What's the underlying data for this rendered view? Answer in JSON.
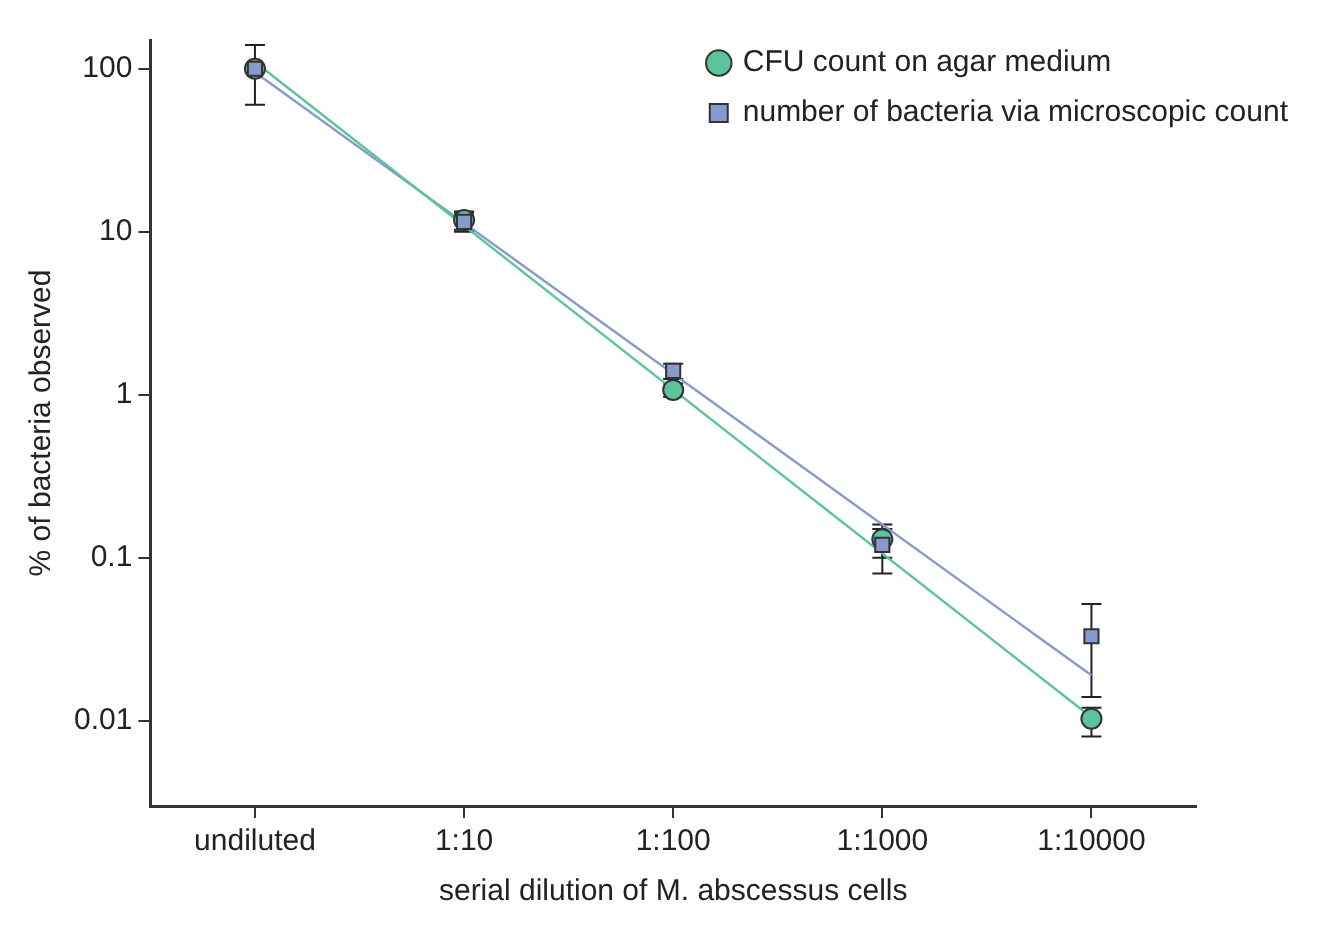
{
  "chart_data": {
    "type": "scatter",
    "xlabel": "serial dilution of M. abscessus cells",
    "ylabel": "% of bacteria observed",
    "categories": [
      "undiluted",
      "1:10",
      "1:100",
      "1:1000",
      "1:10000"
    ],
    "log": "y",
    "ylim": [
      0.003,
      150
    ],
    "yticks": [
      0.01,
      0.1,
      1,
      10,
      100
    ],
    "grid": false,
    "legend": "top right",
    "series": [
      {
        "name": "CFU count on agar medium",
        "color": "#5cc49a",
        "marker": "circle",
        "values": [
          100,
          11.8,
          1.07,
          0.13,
          0.0103
        ],
        "errors": [
          null,
          1.5,
          0.1,
          [
            0.1,
            0.15
          ],
          [
            0.008,
            0.012
          ]
        ]
      },
      {
        "name": "number of bacteria via microscopic count",
        "color": "#8899cc",
        "marker": "square",
        "values": [
          100,
          11.5,
          1.4,
          0.12,
          0.033
        ],
        "errors": [
          [
            60,
            140
          ],
          1.5,
          0.15,
          [
            0.08,
            0.16
          ],
          [
            0.014,
            0.052
          ]
        ]
      },
      {
        "type": "line",
        "color": "#5cc49a",
        "marker": "none",
        "x": [
          "undiluted",
          "1:10000"
        ],
        "values": [
          110,
          0.0105
        ]
      },
      {
        "type": "line",
        "color": "#8899cc",
        "marker": "none",
        "x": [
          "undiluted",
          "1:10000"
        ],
        "values": [
          95,
          0.019
        ]
      }
    ]
  }
}
